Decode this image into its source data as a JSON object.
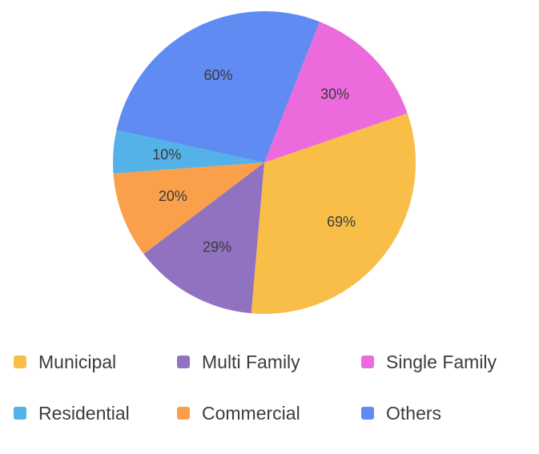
{
  "chart_data": {
    "type": "pie",
    "start_angle_deg": 19,
    "slices": [
      {
        "name": "Municipal",
        "label": "69%",
        "value": 69,
        "color": "#F9BE48"
      },
      {
        "name": "Multi Family",
        "label": "29%",
        "value": 29,
        "color": "#9072C0"
      },
      {
        "name": "Commercial",
        "label": "20%",
        "value": 20,
        "color": "#FBA04A"
      },
      {
        "name": "Residential",
        "label": "10%",
        "value": 10,
        "color": "#55B2E8"
      },
      {
        "name": "Others",
        "label": "60%",
        "value": 60,
        "color": "#5F8BF3"
      },
      {
        "name": "Single Family",
        "label": "30%",
        "value": 30,
        "color": "#EB6BDD"
      }
    ],
    "legend": {
      "placement": "bottom",
      "items": [
        {
          "label": "Municipal",
          "color": "#F9BE48"
        },
        {
          "label": "Multi Family",
          "color": "#9072C0"
        },
        {
          "label": "Single Family",
          "color": "#EB6BDD"
        },
        {
          "label": "Residential",
          "color": "#55B2E8"
        },
        {
          "label": "Commercial",
          "color": "#FBA04A"
        },
        {
          "label": "Others",
          "color": "#5F8BF3"
        }
      ]
    }
  }
}
